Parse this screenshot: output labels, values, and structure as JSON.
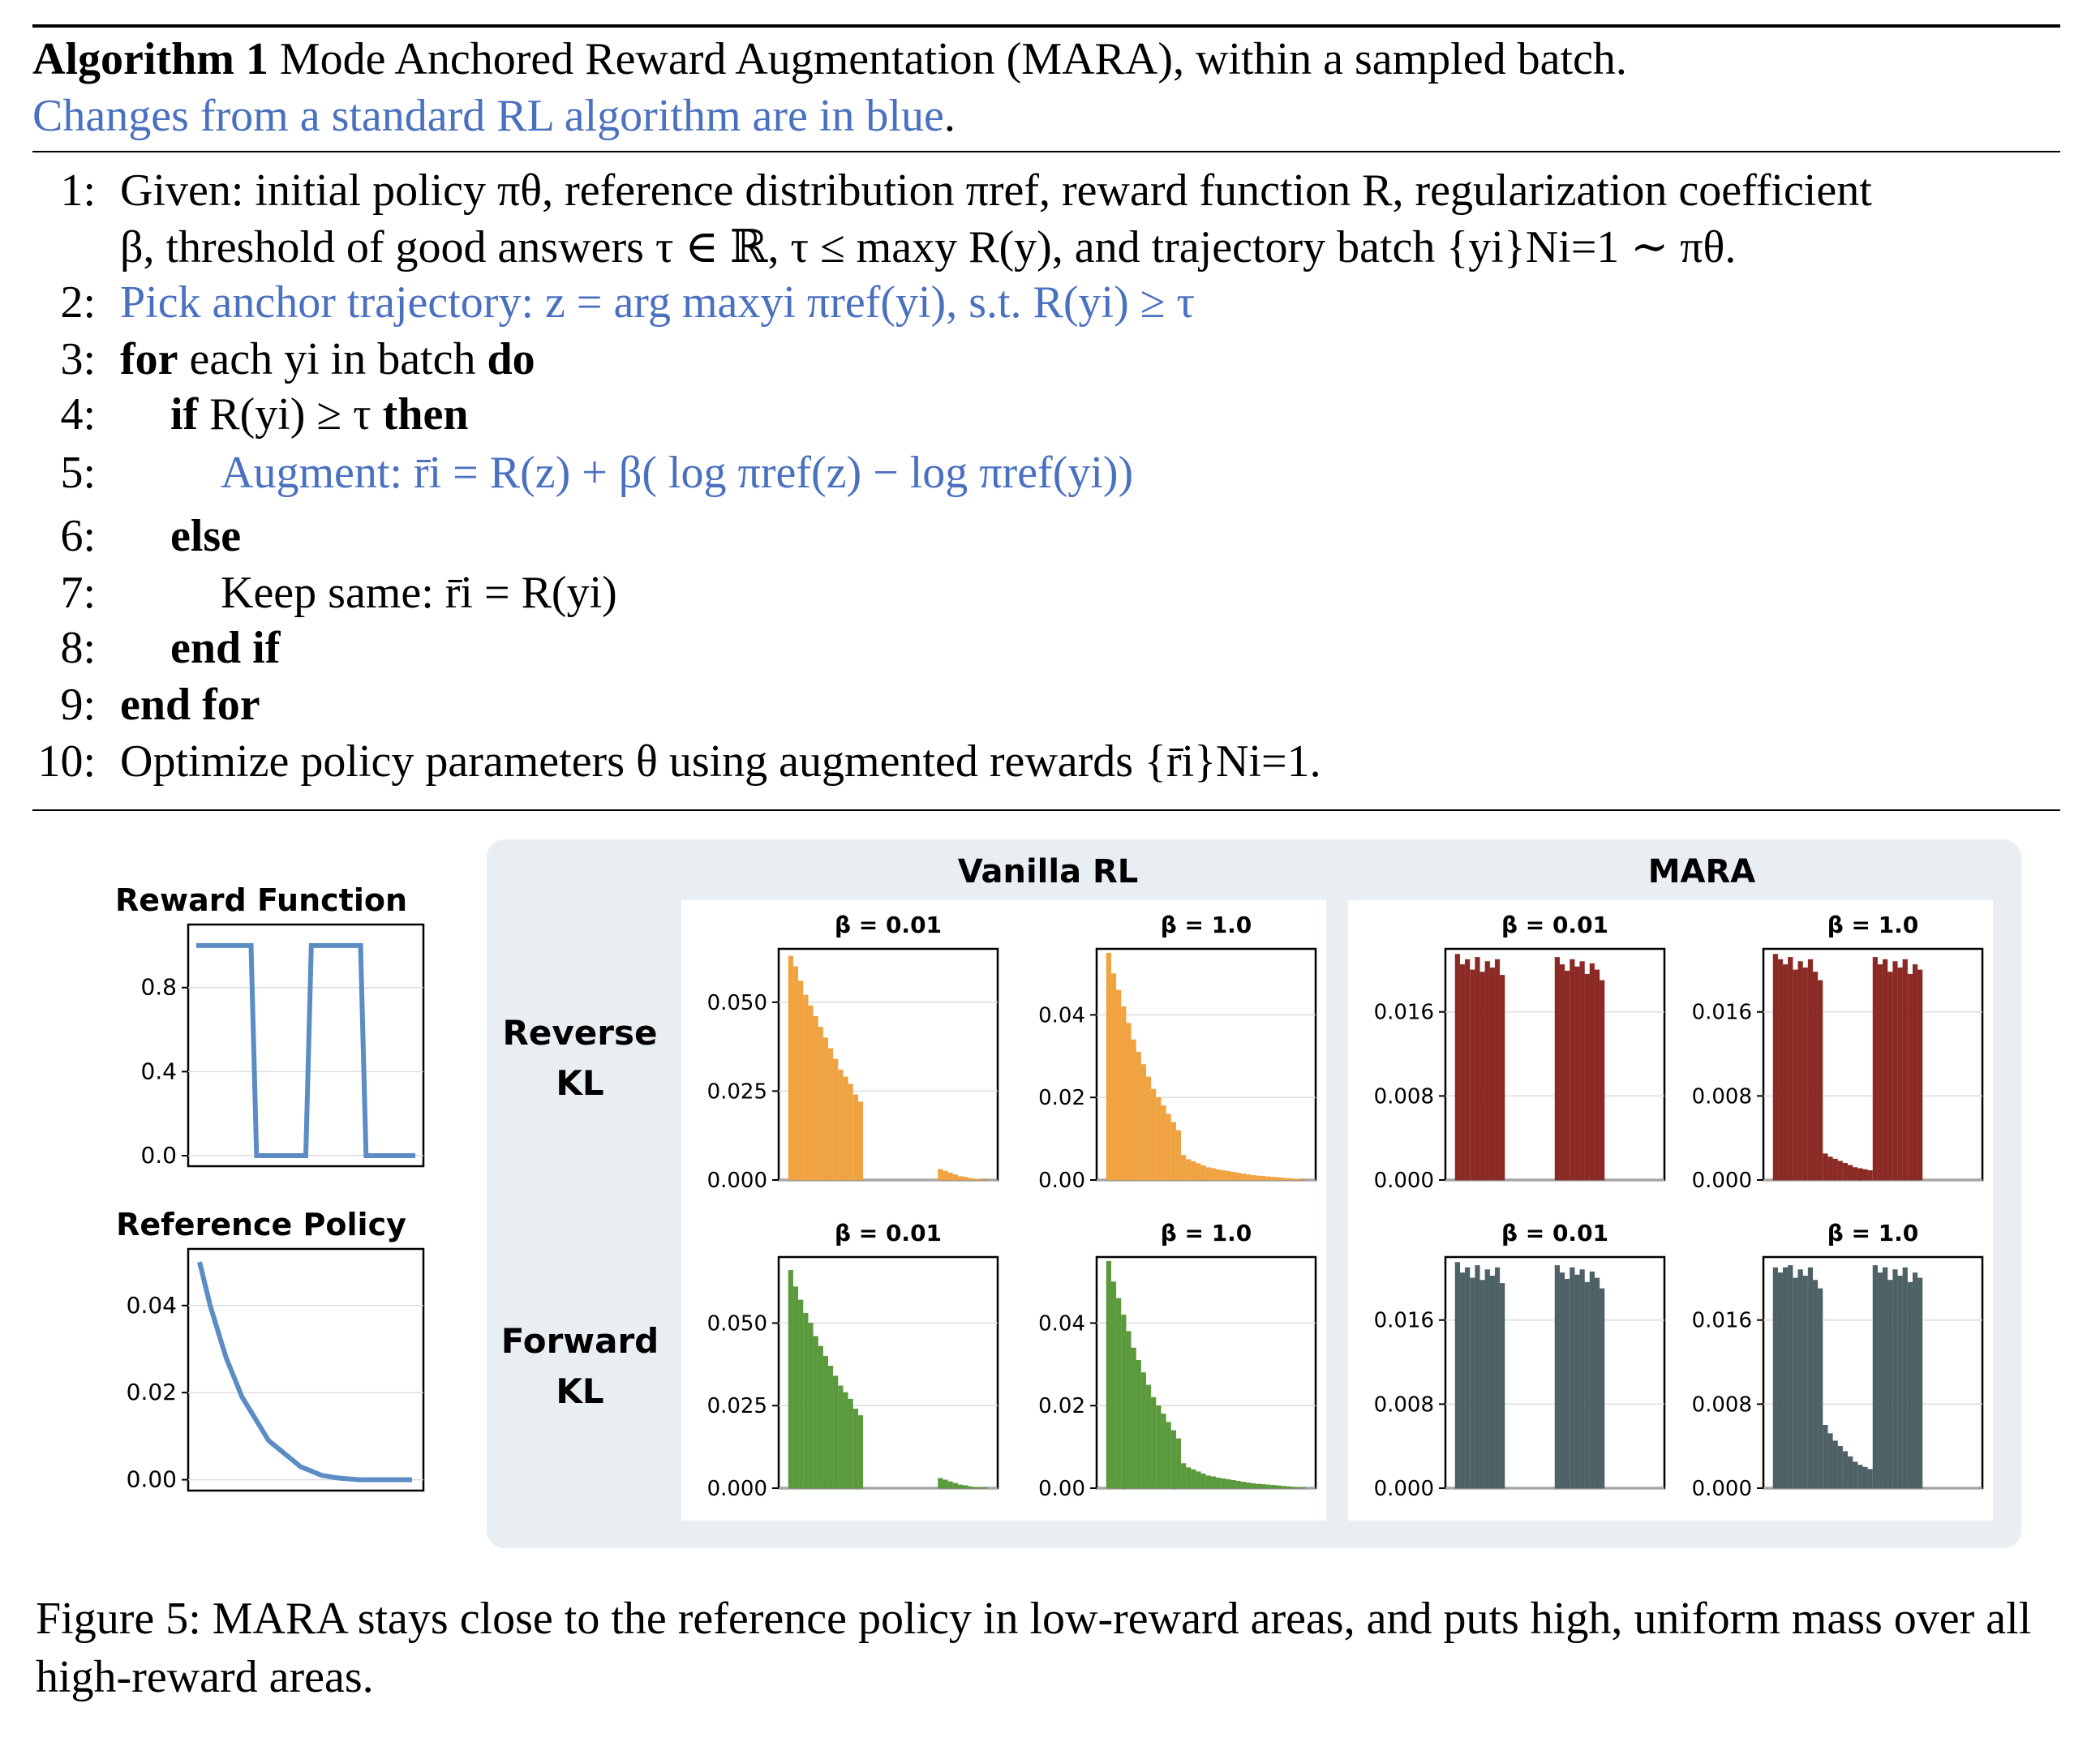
{
  "algorithm": {
    "label": "Algorithm 1",
    "title": "Mode Anchored Reward Augmentation (MARA), within a sampled batch.",
    "note": "Changes from a standard RL algorithm are in blue",
    "note_end": ".",
    "lines": [
      {
        "n": "1:",
        "text": "Given: initial policy πθ, reference distribution πref, reward function R, regularization coefficient"
      },
      {
        "n": "",
        "text": "β, threshold of good answers τ ∈ ℝ, τ ≤ maxy R(y), and trajectory batch {yi}Ni=1 ∼ πθ."
      },
      {
        "n": "2:",
        "text": "Pick anchor trajectory: z = arg maxyi πref(yi), s.t. R(yi) ≥ τ"
      },
      {
        "n": "3:",
        "text": "for each yi in batch do"
      },
      {
        "n": "4:",
        "text": "if R(yi) ≥ τ then"
      },
      {
        "n": "5:",
        "text": "Augment: r̄i = R(z) + β( log πref(z) − log πref(yi))"
      },
      {
        "n": "6:",
        "text": "else"
      },
      {
        "n": "7:",
        "text": "Keep same: r̄i = R(yi)"
      },
      {
        "n": "8:",
        "text": "end if"
      },
      {
        "n": "9:",
        "text": "end for"
      },
      {
        "n": "10:",
        "text": "Optimize policy parameters θ using augmented rewards {r̄i}Ni=1."
      }
    ]
  },
  "figure": {
    "reward_title": "Reward Function",
    "ref_title": "Reference Policy",
    "vanilla_title": "Vanilla RL",
    "mara_title": "MARA",
    "row_labels": [
      [
        "Reverse",
        "KL"
      ],
      [
        "Forward",
        "KL"
      ]
    ],
    "beta_labels": [
      "β = 0.01",
      "β = 1.0"
    ],
    "colors": {
      "reverse_vanilla": "#f0a340",
      "forward_vanilla": "#5b9a3c",
      "reverse_mara": "#8b2a24",
      "forward_mara": "#4d6166",
      "line": "#5b8cc4"
    }
  },
  "chart_data": [
    {
      "type": "line",
      "title": "Reward Function",
      "x": [
        0,
        10,
        11,
        20,
        21,
        30,
        31,
        40
      ],
      "y": [
        1,
        1,
        0,
        0,
        1,
        1,
        0,
        0
      ],
      "yticks": [
        "0.0",
        "0.4",
        "0.8"
      ],
      "ylim": [
        0,
        1
      ]
    },
    {
      "type": "line",
      "title": "Reference Policy",
      "yticks": [
        "0.00",
        "0.02",
        "0.04"
      ],
      "ylim": [
        0,
        0.05
      ],
      "y": [
        0.05,
        0.045,
        0.04,
        0.036,
        0.032,
        0.028,
        0.025,
        0.022,
        0.019,
        0.017,
        0.015,
        0.013,
        0.011,
        0.009,
        0.008,
        0.007,
        0.006,
        0.005,
        0.004,
        0.003,
        0.0025,
        0.002,
        0.0015,
        0.001,
        0.0008,
        0.0006,
        0.0004,
        0.0003,
        0.0002,
        0.0001,
        0,
        0,
        0,
        0,
        0,
        0,
        0,
        0,
        0,
        0,
        0
      ]
    },
    {
      "type": "bar",
      "title": "β = 0.01",
      "row": "Reverse KL",
      "method": "Vanilla RL",
      "yticks": [
        "0.000",
        "0.025",
        "0.050"
      ],
      "ylim": [
        0,
        0.065
      ],
      "values": [
        0.063,
        0.06,
        0.056,
        0.052,
        0.049,
        0.046,
        0.043,
        0.04,
        0.037,
        0.034,
        0.031,
        0.029,
        0.027,
        0.024,
        0.022,
        0,
        0,
        0,
        0,
        0,
        0,
        0,
        0,
        0,
        0,
        0,
        0,
        0,
        0,
        0,
        0.003,
        0.0025,
        0.002,
        0.0015,
        0.001,
        0.0008,
        0.0005,
        0.0003,
        0.0002,
        0.0001
      ]
    },
    {
      "type": "bar",
      "title": "β = 1.0",
      "row": "Reverse KL",
      "method": "Vanilla RL",
      "yticks": [
        "0.00",
        "0.02",
        "0.04"
      ],
      "ylim": [
        0,
        0.056
      ],
      "values": [
        0.055,
        0.05,
        0.046,
        0.042,
        0.038,
        0.034,
        0.031,
        0.028,
        0.025,
        0.022,
        0.02,
        0.018,
        0.016,
        0.014,
        0.012,
        0.006,
        0.005,
        0.0045,
        0.004,
        0.0035,
        0.003,
        0.0028,
        0.0025,
        0.0023,
        0.0021,
        0.0019,
        0.0017,
        0.0015,
        0.0013,
        0.0011,
        0.001,
        0.0009,
        0.0008,
        0.0007,
        0.0006,
        0.0005,
        0.0004,
        0.0003,
        0.0002,
        0.0001
      ]
    },
    {
      "type": "bar",
      "title": "β = 0.01",
      "row": "Reverse KL",
      "method": "MARA",
      "yticks": [
        "0.000",
        "0.008",
        "0.016"
      ],
      "ylim": [
        0,
        0.022
      ],
      "values": [
        0.0215,
        0.0205,
        0.021,
        0.02,
        0.0212,
        0.0198,
        0.0208,
        0.0202,
        0.021,
        0.0195,
        0,
        0,
        0,
        0,
        0,
        0,
        0,
        0,
        0,
        0,
        0.0212,
        0.0205,
        0.0199,
        0.021,
        0.0203,
        0.0208,
        0.0196,
        0.0206,
        0.02,
        0.019,
        0,
        0,
        0,
        0,
        0,
        0,
        0,
        0,
        0,
        0
      ]
    },
    {
      "type": "bar",
      "title": "β = 1.0",
      "row": "Reverse KL",
      "method": "MARA",
      "yticks": [
        "0.000",
        "0.008",
        "0.016"
      ],
      "ylim": [
        0,
        0.022
      ],
      "values": [
        0.0215,
        0.021,
        0.0205,
        0.0212,
        0.02,
        0.0208,
        0.0202,
        0.021,
        0.0198,
        0.019,
        0.0025,
        0.0022,
        0.002,
        0.0018,
        0.0016,
        0.0014,
        0.0012,
        0.0011,
        0.001,
        0.0009,
        0.0212,
        0.0205,
        0.021,
        0.0198,
        0.0208,
        0.0202,
        0.021,
        0.0196,
        0.0205,
        0.02,
        0,
        0,
        0,
        0,
        0,
        0,
        0,
        0,
        0,
        0
      ]
    },
    {
      "type": "bar",
      "title": "β = 0.01",
      "row": "Forward KL",
      "method": "Vanilla RL",
      "yticks": [
        "0.000",
        "0.025",
        "0.050"
      ],
      "ylim": [
        0,
        0.07
      ],
      "values": [
        0.066,
        0.061,
        0.057,
        0.053,
        0.05,
        0.046,
        0.043,
        0.04,
        0.037,
        0.034,
        0.031,
        0.029,
        0.027,
        0.024,
        0.022,
        0,
        0,
        0,
        0,
        0,
        0,
        0,
        0,
        0,
        0,
        0,
        0,
        0,
        0,
        0,
        0.003,
        0.0025,
        0.002,
        0.0015,
        0.001,
        0.0008,
        0.0005,
        0.0003,
        0.0002,
        0.0001
      ]
    },
    {
      "type": "bar",
      "title": "β = 1.0",
      "row": "Forward KL",
      "method": "Vanilla RL",
      "yticks": [
        "0.00",
        "0.02",
        "0.04"
      ],
      "ylim": [
        0,
        0.056
      ],
      "values": [
        0.055,
        0.05,
        0.046,
        0.042,
        0.038,
        0.034,
        0.031,
        0.028,
        0.025,
        0.022,
        0.02,
        0.018,
        0.016,
        0.014,
        0.012,
        0.006,
        0.005,
        0.0045,
        0.004,
        0.0035,
        0.003,
        0.0028,
        0.0025,
        0.0023,
        0.0021,
        0.0019,
        0.0017,
        0.0015,
        0.0013,
        0.0011,
        0.001,
        0.0009,
        0.0008,
        0.0007,
        0.0006,
        0.0005,
        0.0004,
        0.0003,
        0.0002,
        0.0001
      ]
    },
    {
      "type": "bar",
      "title": "β = 0.01",
      "row": "Forward KL",
      "method": "MARA",
      "yticks": [
        "0.000",
        "0.008",
        "0.016"
      ],
      "ylim": [
        0,
        0.022
      ],
      "values": [
        0.0215,
        0.0205,
        0.021,
        0.02,
        0.0212,
        0.0198,
        0.0208,
        0.0202,
        0.021,
        0.0195,
        0,
        0,
        0,
        0,
        0,
        0,
        0,
        0,
        0,
        0,
        0.0212,
        0.0205,
        0.0199,
        0.021,
        0.0203,
        0.0208,
        0.0196,
        0.0206,
        0.02,
        0.019,
        0,
        0,
        0,
        0,
        0,
        0,
        0,
        0,
        0,
        0
      ]
    },
    {
      "type": "bar",
      "title": "β = 1.0",
      "row": "Forward KL",
      "method": "MARA",
      "yticks": [
        "0.000",
        "0.008",
        "0.016"
      ],
      "ylim": [
        0,
        0.022
      ],
      "values": [
        0.021,
        0.0205,
        0.021,
        0.0212,
        0.02,
        0.0208,
        0.0202,
        0.021,
        0.0198,
        0.019,
        0.006,
        0.0052,
        0.0045,
        0.004,
        0.0035,
        0.003,
        0.0025,
        0.0022,
        0.002,
        0.0018,
        0.0212,
        0.0205,
        0.021,
        0.0198,
        0.0208,
        0.0202,
        0.021,
        0.0196,
        0.0205,
        0.02,
        0,
        0,
        0,
        0,
        0,
        0,
        0,
        0,
        0,
        0
      ]
    }
  ],
  "caption": "Figure 5: MARA stays close to the reference policy in low-reward areas, and puts high, uniform mass over all high-reward areas."
}
